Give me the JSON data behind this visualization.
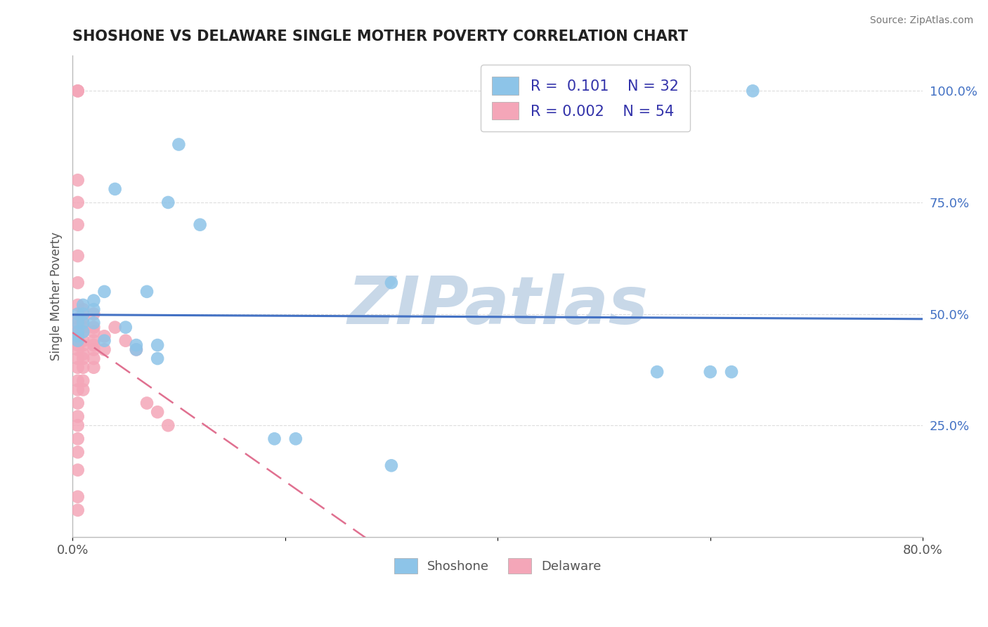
{
  "title": "SHOSHONE VS DELAWARE SINGLE MOTHER POVERTY CORRELATION CHART",
  "source_text": "Source: ZipAtlas.com",
  "ylabel": "Single Mother Poverty",
  "xlim": [
    0.0,
    0.8
  ],
  "ylim": [
    0.0,
    1.08
  ],
  "ytick_labels_right": [
    "100.0%",
    "75.0%",
    "50.0%",
    "25.0%"
  ],
  "ytick_positions_right": [
    1.0,
    0.75,
    0.5,
    0.25
  ],
  "shoshone_color": "#8DC4E8",
  "delaware_color": "#F4A6B8",
  "shoshone_line_color": "#4472C4",
  "delaware_line_color": "#E07090",
  "legend_R_shoshone": "0.101",
  "legend_N_shoshone": "32",
  "legend_R_delaware": "0.002",
  "legend_N_delaware": "54",
  "watermark": "ZIPatlas",
  "watermark_color": "#C8D8E8",
  "shoshone_x": [
    0.005,
    0.005,
    0.005,
    0.005,
    0.005,
    0.01,
    0.01,
    0.01,
    0.01,
    0.02,
    0.02,
    0.02,
    0.03,
    0.03,
    0.04,
    0.05,
    0.06,
    0.06,
    0.07,
    0.08,
    0.08,
    0.09,
    0.1,
    0.12,
    0.19,
    0.21,
    0.3,
    0.3,
    0.55,
    0.6,
    0.62,
    0.64
  ],
  "shoshone_y": [
    0.5,
    0.48,
    0.46,
    0.45,
    0.44,
    0.52,
    0.5,
    0.48,
    0.46,
    0.53,
    0.51,
    0.48,
    0.55,
    0.44,
    0.78,
    0.47,
    0.43,
    0.42,
    0.55,
    0.43,
    0.4,
    0.75,
    0.88,
    0.7,
    0.22,
    0.22,
    0.57,
    0.16,
    0.37,
    0.37,
    0.37,
    1.0
  ],
  "delaware_x": [
    0.005,
    0.005,
    0.005,
    0.005,
    0.005,
    0.005,
    0.005,
    0.005,
    0.005,
    0.005,
    0.005,
    0.005,
    0.005,
    0.005,
    0.005,
    0.005,
    0.005,
    0.005,
    0.005,
    0.005,
    0.005,
    0.005,
    0.005,
    0.005,
    0.005,
    0.005,
    0.005,
    0.01,
    0.01,
    0.01,
    0.01,
    0.01,
    0.01,
    0.01,
    0.01,
    0.01,
    0.01,
    0.01,
    0.02,
    0.02,
    0.02,
    0.02,
    0.02,
    0.02,
    0.02,
    0.02,
    0.03,
    0.03,
    0.04,
    0.05,
    0.06,
    0.07,
    0.08,
    0.09
  ],
  "delaware_y": [
    1.0,
    1.0,
    0.8,
    0.75,
    0.7,
    0.63,
    0.57,
    0.52,
    0.49,
    0.47,
    0.46,
    0.45,
    0.44,
    0.43,
    0.42,
    0.4,
    0.38,
    0.35,
    0.33,
    0.3,
    0.27,
    0.25,
    0.22,
    0.19,
    0.15,
    0.09,
    0.06,
    0.51,
    0.49,
    0.47,
    0.46,
    0.44,
    0.43,
    0.41,
    0.4,
    0.38,
    0.35,
    0.33,
    0.5,
    0.47,
    0.46,
    0.44,
    0.43,
    0.42,
    0.4,
    0.38,
    0.45,
    0.42,
    0.47,
    0.44,
    0.42,
    0.3,
    0.28,
    0.25
  ],
  "background_color": "#FFFFFF",
  "grid_color": "#DDDDDD"
}
